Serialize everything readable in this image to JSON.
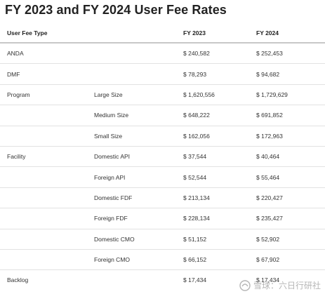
{
  "title": "FY 2023 and FY 2024 User Fee Rates",
  "table": {
    "headers": [
      "User Fee Type",
      "",
      "FY 2023",
      "FY 2024"
    ],
    "rows": [
      {
        "type": "ANDA",
        "sub": "",
        "fy2023": "$ 240,582",
        "fy2024": "$ 252,453"
      },
      {
        "type": "DMF",
        "sub": "",
        "fy2023": "$ 78,293",
        "fy2024": "$ 94,682"
      },
      {
        "type": "Program",
        "sub": "Large Size",
        "fy2023": "$ 1,620,556",
        "fy2024": "$ 1,729,629"
      },
      {
        "type": "",
        "sub": "Medium Size",
        "fy2023": "$ 648,222",
        "fy2024": "$ 691,852"
      },
      {
        "type": "",
        "sub": "Small Size",
        "fy2023": "$ 162,056",
        "fy2024": "$ 172,963"
      },
      {
        "type": "Facility",
        "sub": "Domestic API",
        "fy2023": "$ 37,544",
        "fy2024": "$ 40,464"
      },
      {
        "type": "",
        "sub": "Foreign API",
        "fy2023": "$ 52,544",
        "fy2024": "$ 55,464"
      },
      {
        "type": "",
        "sub": "Domestic FDF",
        "fy2023": "$ 213,134",
        "fy2024": "$ 220,427"
      },
      {
        "type": "",
        "sub": "Foreign FDF",
        "fy2023": "$ 228,134",
        "fy2024": "$ 235,427"
      },
      {
        "type": "",
        "sub": "Domestic CMO",
        "fy2023": "$ 51,152",
        "fy2024": "$ 52,902"
      },
      {
        "type": "",
        "sub": "Foreign CMO",
        "fy2023": "$ 66,152",
        "fy2024": "$ 67,902"
      },
      {
        "type": "Backlog",
        "sub": "",
        "fy2023": "$ 17,434",
        "fy2024": "$ 17,434"
      }
    ]
  },
  "watermark": {
    "text": "雪球：六日行研社",
    "icon": "snowball-logo-icon"
  }
}
